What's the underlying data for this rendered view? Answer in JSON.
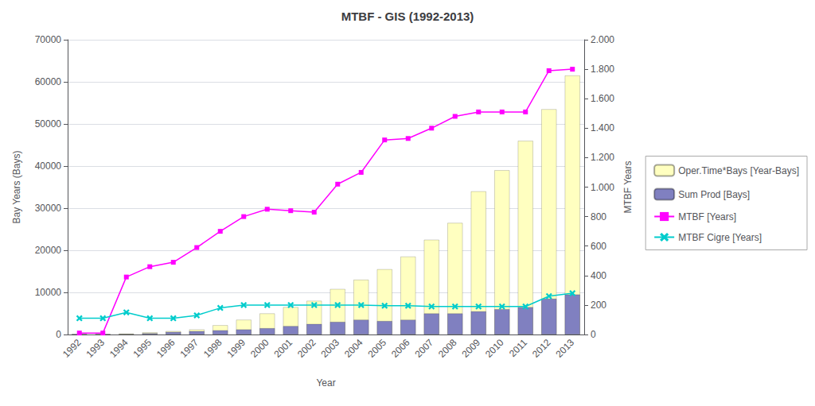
{
  "chart_data": {
    "type": "bar",
    "title": "MTBF - GIS (1992-2013)",
    "xlabel": "Year",
    "ylabel": "Bay Years (Bays)",
    "y2label": "MTBF Years",
    "categories": [
      "1992",
      "1993",
      "1994",
      "1995",
      "1996",
      "1997",
      "1998",
      "1999",
      "2000",
      "2001",
      "2002",
      "2003",
      "2004",
      "2005",
      "2006",
      "2007",
      "2008",
      "2009",
      "2010",
      "2011",
      "2012",
      "2013"
    ],
    "series": [
      {
        "name": "Oper.Time*Bays [Year-Bays]",
        "type": "bar",
        "color": "#FFFFC0",
        "values": [
          50,
          50,
          200,
          500,
          800,
          1200,
          2200,
          3500,
          5000,
          6500,
          8000,
          10800,
          13000,
          15500,
          18500,
          22500,
          26500,
          34000,
          39000,
          46000,
          53500,
          61500
        ]
      },
      {
        "name": "Sum Prod [Bays]",
        "type": "bar",
        "color": "#8080C0",
        "values": [
          20,
          30,
          100,
          300,
          600,
          800,
          1000,
          1200,
          1500,
          2000,
          2500,
          3000,
          3500,
          3200,
          3500,
          5000,
          5000,
          5500,
          6000,
          6500,
          8500,
          9500
        ]
      },
      {
        "name": "MTBF [Years]",
        "type": "line",
        "axis": "y2",
        "color": "#FF00FF",
        "marker": "square",
        "values": [
          10,
          10,
          390,
          460,
          490,
          590,
          700,
          800,
          850,
          840,
          830,
          1020,
          1100,
          1320,
          1330,
          1400,
          1480,
          1510,
          1510,
          1510,
          1790,
          1800
        ]
      },
      {
        "name": "MTBF Cigre [Years]",
        "type": "line",
        "axis": "y2",
        "color": "#00CCCC",
        "marker": "x",
        "values": [
          110,
          110,
          150,
          110,
          110,
          130,
          180,
          200,
          200,
          200,
          200,
          200,
          200,
          195,
          195,
          190,
          190,
          190,
          190,
          190,
          260,
          280
        ]
      }
    ],
    "ylim": [
      0,
      70000
    ],
    "yticks": [
      0,
      10000,
      20000,
      30000,
      40000,
      50000,
      60000,
      70000
    ],
    "y2lim": [
      0,
      2000
    ],
    "y2ticks": [
      0,
      200,
      400,
      600,
      800,
      {
        "value": 1000,
        "label": "1.000"
      },
      {
        "value": 1200,
        "label": "1.200"
      },
      {
        "value": 1400,
        "label": "1.400"
      },
      {
        "value": 1600,
        "label": "1.600"
      },
      {
        "value": 1800,
        "label": "1.800"
      },
      {
        "value": 2000,
        "label": "2.000"
      }
    ],
    "grid": true,
    "legend": "right"
  }
}
